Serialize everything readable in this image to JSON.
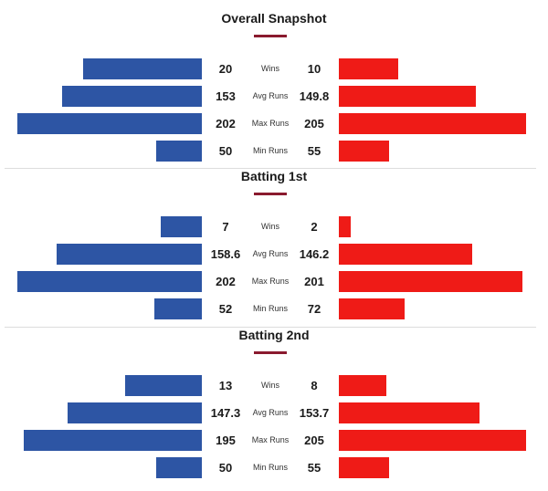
{
  "chart_data": [
    {
      "type": "bar",
      "title": "Overall Snapshot",
      "categories": [
        "Wins",
        "Avg Runs",
        "Max Runs",
        "Min Runs"
      ],
      "series": [
        {
          "values": [
            20,
            153,
            202,
            50
          ],
          "color": "#2d55a4"
        },
        {
          "values": [
            10,
            149.8,
            205,
            55
          ],
          "color": "#ef1b17"
        }
      ],
      "value_labels": [
        {
          "left": "20",
          "right": "10"
        },
        {
          "left": "153",
          "right": "149.8"
        },
        {
          "left": "202",
          "right": "205"
        },
        {
          "left": "50",
          "right": "55"
        }
      ]
    },
    {
      "type": "bar",
      "title": "Batting 1st",
      "categories": [
        "Wins",
        "Avg Runs",
        "Max Runs",
        "Min Runs"
      ],
      "series": [
        {
          "values": [
            7,
            158.6,
            202,
            52
          ],
          "color": "#2d55a4"
        },
        {
          "values": [
            2,
            146.2,
            201,
            72
          ],
          "color": "#ef1b17"
        }
      ],
      "value_labels": [
        {
          "left": "7",
          "right": "2"
        },
        {
          "left": "158.6",
          "right": "146.2"
        },
        {
          "left": "202",
          "right": "201"
        },
        {
          "left": "52",
          "right": "72"
        }
      ]
    },
    {
      "type": "bar",
      "title": "Batting 2nd",
      "categories": [
        "Wins",
        "Avg Runs",
        "Max Runs",
        "Min Runs"
      ],
      "series": [
        {
          "values": [
            13,
            147.3,
            195,
            50
          ],
          "color": "#2d55a4"
        },
        {
          "values": [
            8,
            153.7,
            205,
            55
          ],
          "color": "#ef1b17"
        }
      ],
      "value_labels": [
        {
          "left": "13",
          "right": "8"
        },
        {
          "left": "147.3",
          "right": "153.7"
        },
        {
          "left": "195",
          "right": "205"
        },
        {
          "left": "50",
          "right": "55"
        }
      ]
    }
  ],
  "colors": {
    "left_team": "#2d55a4",
    "right_team": "#ef1b17",
    "accent": "#8a1a2e"
  }
}
